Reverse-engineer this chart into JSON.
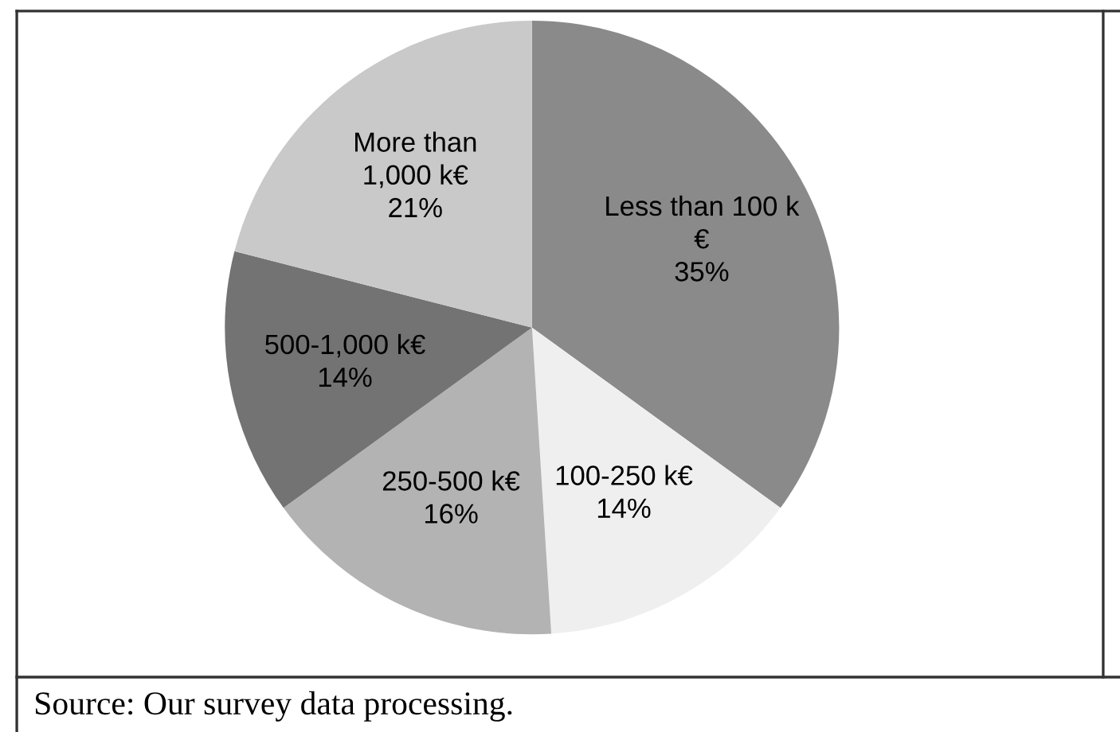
{
  "chart_data": {
    "type": "pie",
    "categories": [
      "Less than 100 k\n€",
      "100-250 k€",
      "250-500 k€",
      "500-1,000 k€",
      "More than\n1,000 k€"
    ],
    "values": [
      35,
      14,
      16,
      14,
      21
    ],
    "colors": [
      "#8a8a8a",
      "#efefef",
      "#b3b3b3",
      "#737373",
      "#c9c9c9"
    ],
    "value_labels": [
      "35%",
      "14%",
      "16%",
      "14%",
      "21%"
    ],
    "annotations": [
      "Source: Our survey data processing."
    ]
  }
}
